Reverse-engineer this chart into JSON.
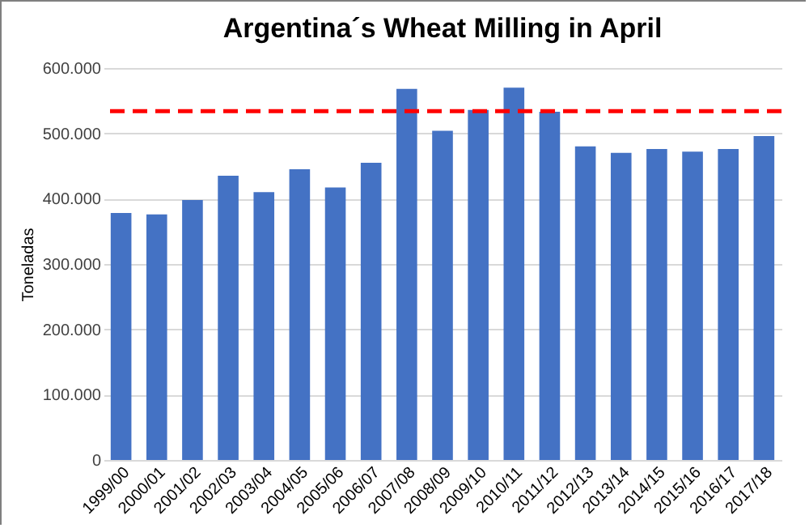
{
  "chart_data": {
    "type": "bar",
    "title": "Argentina´s Wheat Milling in April",
    "ylabel": "Toneladas",
    "categories": [
      "1999/00",
      "2000/01",
      "2001/02",
      "2002/03",
      "2003/04",
      "2004/05",
      "2005/06",
      "2006/07",
      "2007/08",
      "2008/09",
      "2009/10",
      "2010/11",
      "2011/12",
      "2012/13",
      "2013/14",
      "2014/15",
      "2015/16",
      "2016/17",
      "2017/18"
    ],
    "values": [
      378000,
      376000,
      398000,
      435000,
      410000,
      445000,
      417000,
      455000,
      568000,
      504000,
      536000,
      570000,
      533000,
      480000,
      470000,
      476000,
      472000,
      476000,
      496000
    ],
    "color": "#4472c4",
    "ylim": [
      0,
      600000
    ],
    "yticks": [
      {
        "value": 0,
        "label": "0"
      },
      {
        "value": 100000,
        "label": "100.000"
      },
      {
        "value": 200000,
        "label": "200.000"
      },
      {
        "value": 300000,
        "label": "300.000"
      },
      {
        "value": 400000,
        "label": "400.000"
      },
      {
        "value": 500000,
        "label": "500.000"
      },
      {
        "value": 600000,
        "label": "600.000"
      }
    ],
    "grid": "y",
    "ref_lines": [
      {
        "axis": "y",
        "value": 534000,
        "label": null,
        "color": "#ff0000",
        "line_style": "dashed"
      }
    ]
  }
}
